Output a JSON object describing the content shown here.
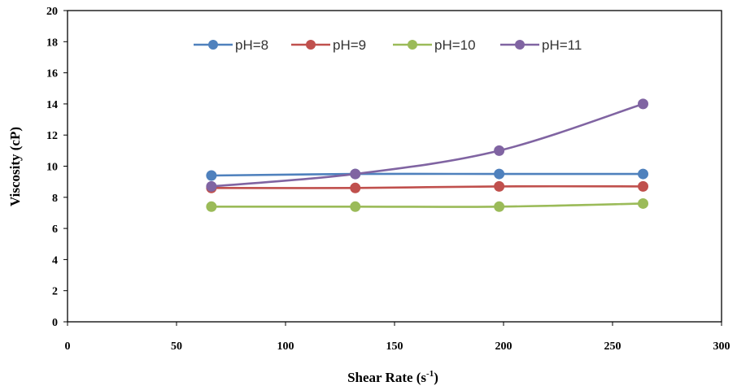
{
  "chart_data": {
    "type": "line",
    "xlabel": "Shear Rate (s",
    "xlabel_superscript": "-1",
    "xlabel_suffix": ")",
    "ylabel": "Viscosity (cP)",
    "xlim": [
      0,
      300
    ],
    "ylim": [
      0,
      20
    ],
    "xticks": [
      0,
      50,
      100,
      150,
      200,
      250,
      300
    ],
    "yticks": [
      0,
      2,
      4,
      6,
      8,
      10,
      12,
      14,
      16,
      18,
      20
    ],
    "grid": false,
    "legend_position": "top",
    "x": [
      66,
      132,
      198,
      264
    ],
    "series": [
      {
        "name": "pH=8",
        "color": "#4F81BD",
        "values": [
          9.4,
          9.5,
          9.5,
          9.5
        ]
      },
      {
        "name": "pH=9",
        "color": "#C0504D",
        "values": [
          8.6,
          8.6,
          8.7,
          8.7
        ]
      },
      {
        "name": "pH=10",
        "color": "#9BBB59",
        "values": [
          7.4,
          7.4,
          7.4,
          7.6
        ]
      },
      {
        "name": "pH=11",
        "color": "#8064A2",
        "values": [
          8.7,
          9.5,
          11.0,
          14.0
        ]
      }
    ]
  }
}
